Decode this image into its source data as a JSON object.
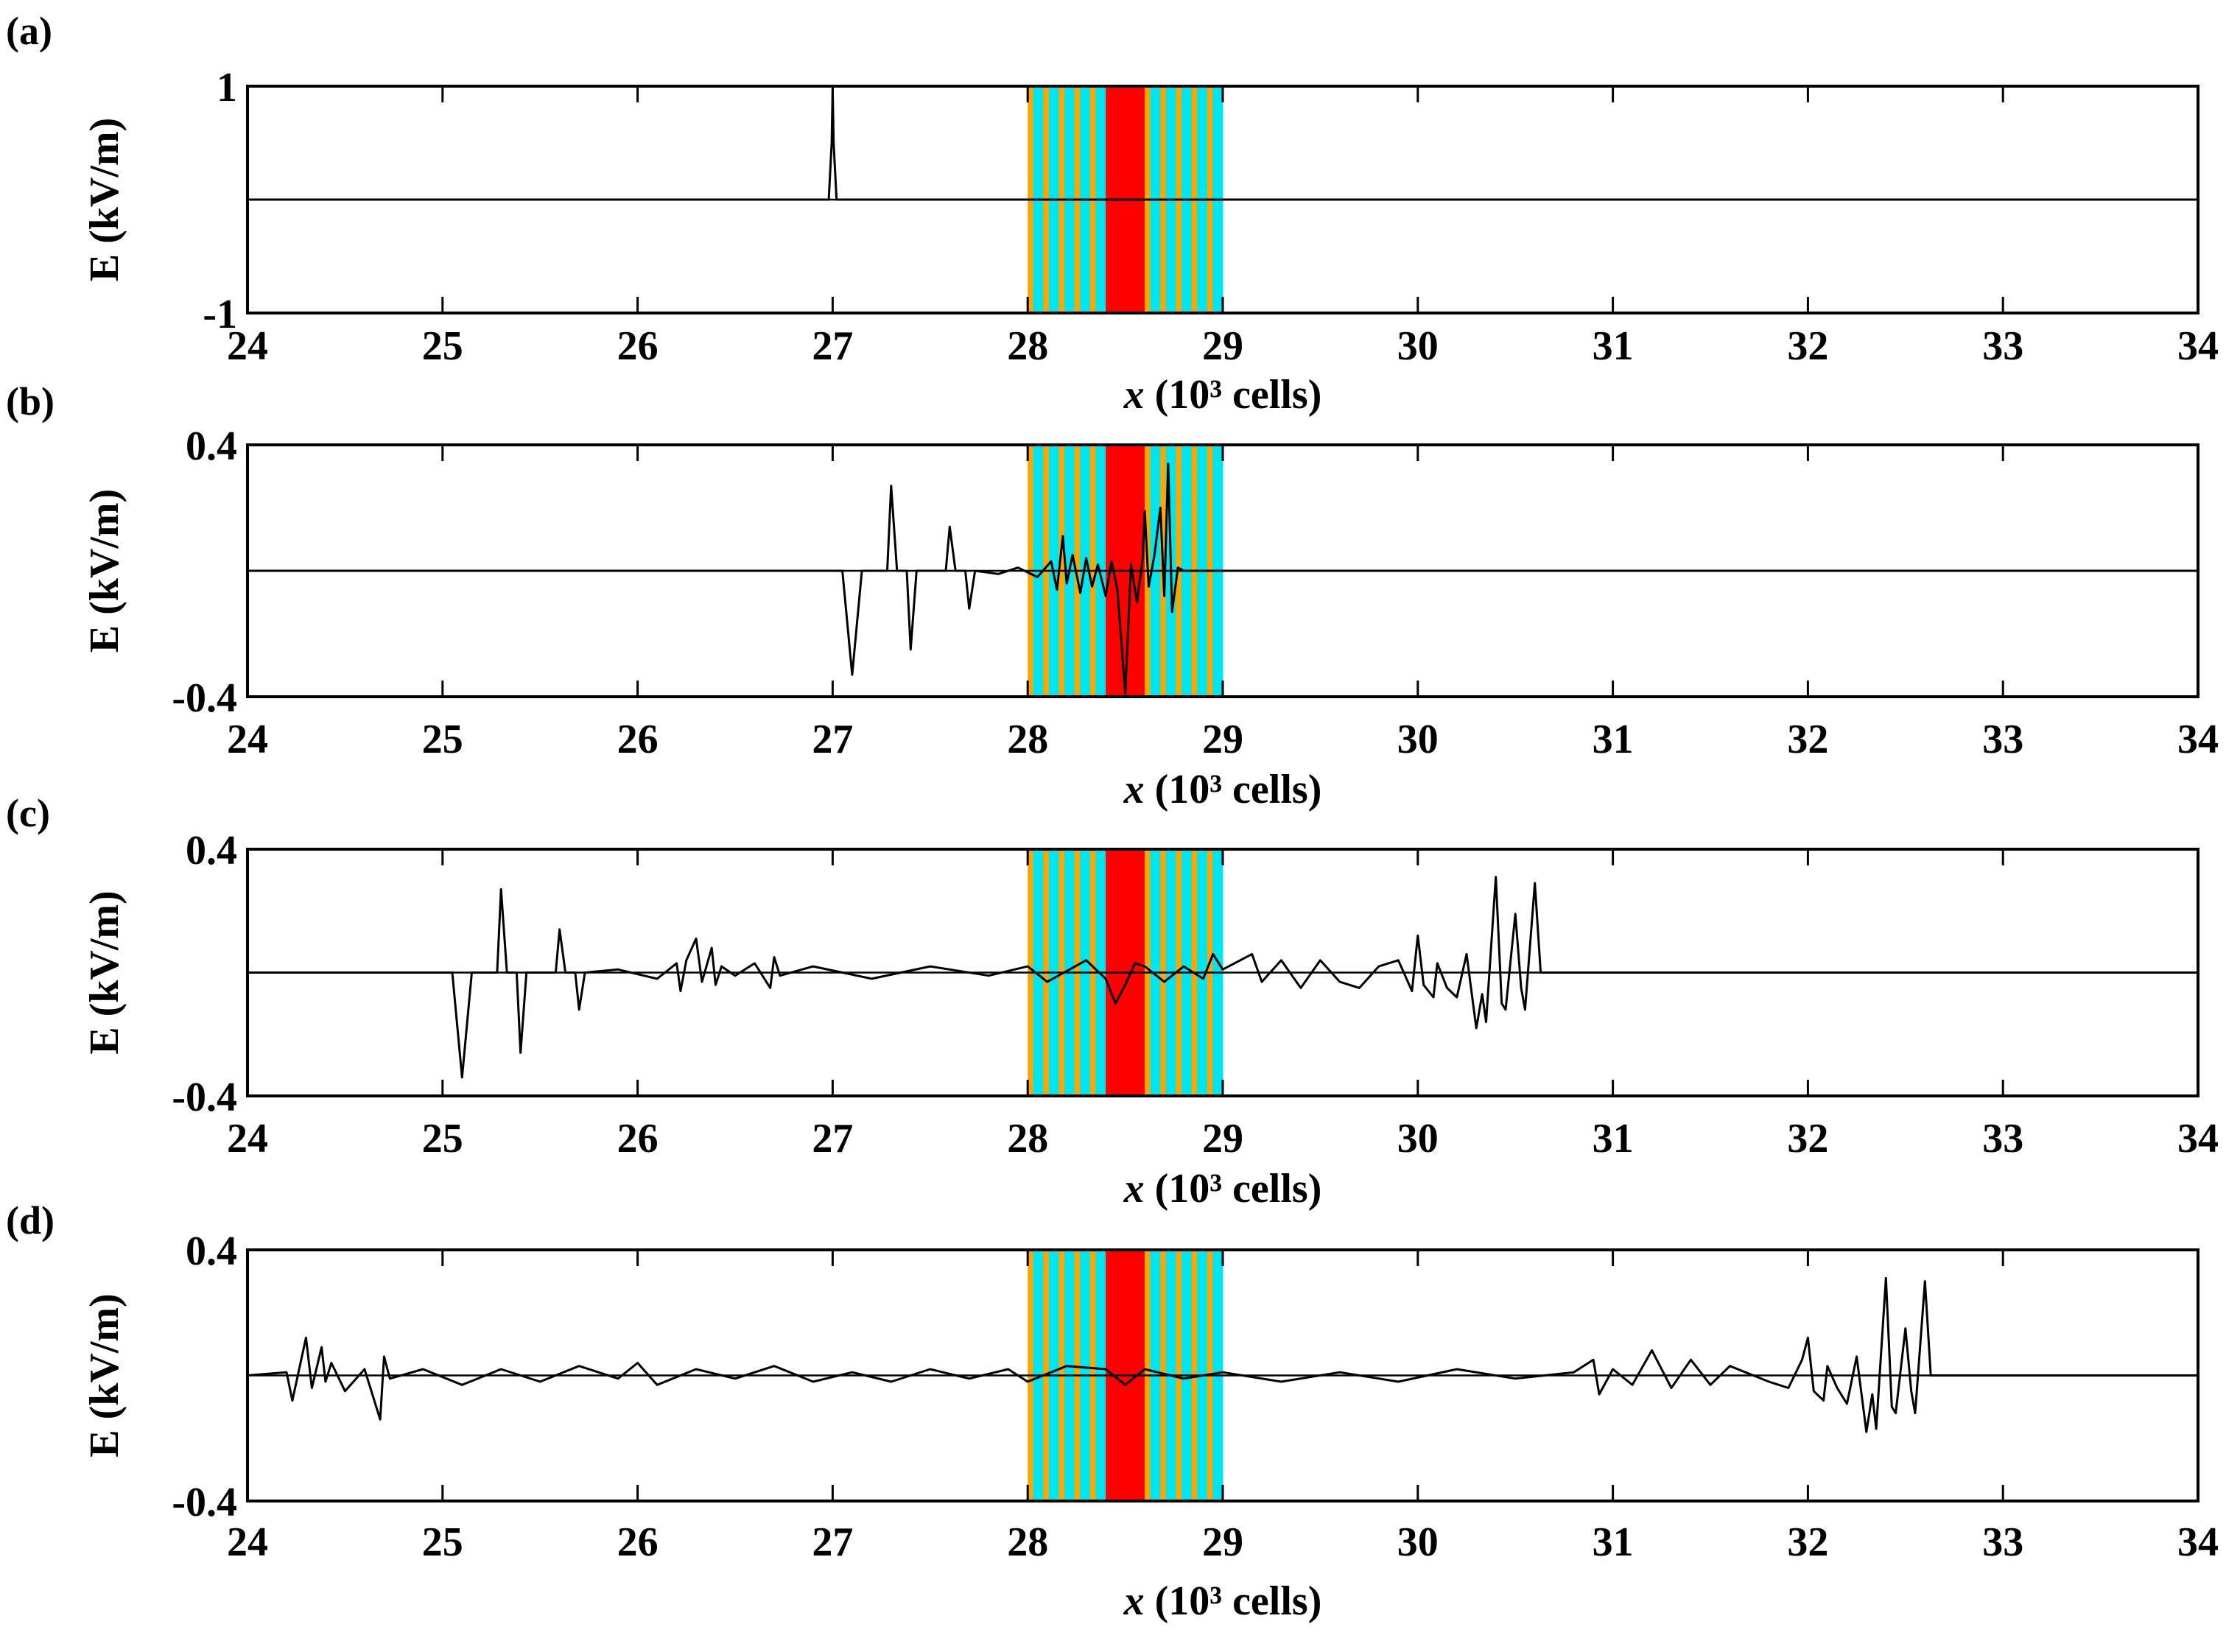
{
  "colors": {
    "layer_a": "#FFA500",
    "layer_b": "#00E5EE",
    "defect": "#FF0000",
    "trace": "#000000"
  },
  "chart_data": [
    {
      "type": "line",
      "panel": "(a)",
      "xlabel_italic": "x",
      "xlabel_rest": " (10³ cells)",
      "ylabel": "E (kV/m)",
      "xlim": [
        24,
        34
      ],
      "ylim": [
        -1,
        1
      ],
      "xticks": [
        "24",
        "25",
        "26",
        "27",
        "28",
        "29",
        "30",
        "31",
        "32",
        "33",
        "34"
      ],
      "yticks": [
        "1",
        "-1"
      ],
      "grid": false,
      "structure": {
        "x_start": 28.0,
        "x_end": 29.0,
        "defect": [
          28.4,
          28.6
        ]
      },
      "series": [
        {
          "x": [
            24.0,
            26.98,
            26.995,
            27.0,
            27.005,
            27.02,
            34.0
          ],
          "y": [
            0,
            0,
            0.5,
            0.98,
            0.5,
            0,
            0
          ]
        }
      ]
    },
    {
      "type": "line",
      "panel": "(b)",
      "xlabel_italic": "x",
      "xlabel_rest": " (10³ cells)",
      "ylabel": "E (kV/m)",
      "xlim": [
        24,
        34
      ],
      "ylim": [
        -0.4,
        0.4
      ],
      "xticks": [
        "24",
        "25",
        "26",
        "27",
        "28",
        "29",
        "30",
        "31",
        "32",
        "33",
        "34"
      ],
      "yticks": [
        "0.4",
        "-0.4"
      ],
      "grid": false,
      "structure": {
        "x_start": 28.0,
        "x_end": 29.0,
        "defect": [
          28.4,
          28.6
        ]
      },
      "series": [
        {
          "x": [
            24.0,
            27.05,
            27.1,
            27.15,
            27.28,
            27.3,
            27.33,
            27.38,
            27.4,
            27.43,
            27.58,
            27.6,
            27.63,
            27.68,
            27.7,
            27.73,
            27.85,
            27.95,
            28.05,
            28.12,
            28.15,
            28.18,
            28.2,
            28.23,
            28.27,
            28.3,
            28.33,
            28.36,
            28.4,
            28.43,
            28.46,
            28.5,
            28.53,
            28.56,
            28.59,
            28.6,
            28.62,
            28.65,
            28.68,
            28.7,
            28.72,
            28.74,
            28.77,
            28.8,
            34.0
          ],
          "y": [
            0,
            0,
            -0.33,
            0,
            0,
            0.27,
            0,
            0,
            -0.25,
            0,
            0,
            0.14,
            0,
            0,
            -0.12,
            0,
            -0.01,
            0.01,
            -0.02,
            0.03,
            -0.06,
            0.11,
            -0.04,
            0.05,
            -0.07,
            0.04,
            -0.05,
            0.02,
            -0.08,
            0.03,
            -0.06,
            -0.39,
            0.02,
            -0.1,
            0.04,
            0.19,
            -0.05,
            0.05,
            0.2,
            -0.08,
            0.34,
            -0.13,
            0.01,
            0,
            0
          ]
        }
      ]
    },
    {
      "type": "line",
      "panel": "(c)",
      "xlabel_italic": "x",
      "xlabel_rest": " (10³ cells)",
      "ylabel": "E (kV/m)",
      "xlim": [
        24,
        34
      ],
      "ylim": [
        -0.4,
        0.4
      ],
      "xticks": [
        "24",
        "25",
        "26",
        "27",
        "28",
        "29",
        "30",
        "31",
        "32",
        "33",
        "34"
      ],
      "yticks": [
        "0.4",
        "-0.4"
      ],
      "grid": false,
      "structure": {
        "x_start": 28.0,
        "x_end": 29.0,
        "defect": [
          28.4,
          28.6
        ]
      },
      "series": [
        {
          "x": [
            24.0,
            25.05,
            25.1,
            25.15,
            25.28,
            25.3,
            25.33,
            25.38,
            25.4,
            25.43,
            25.58,
            25.6,
            25.63,
            25.68,
            25.7,
            25.73,
            25.9,
            26.1,
            26.2,
            26.22,
            26.25,
            26.3,
            26.33,
            26.38,
            26.4,
            26.43,
            26.5,
            26.6,
            26.68,
            26.7,
            26.73,
            26.9,
            27.2,
            27.5,
            27.8,
            28.0,
            28.1,
            28.3,
            28.4,
            28.45,
            28.5,
            28.55,
            28.6,
            28.7,
            28.8,
            28.9,
            28.95,
            29.0,
            29.15,
            29.2,
            29.3,
            29.4,
            29.5,
            29.6,
            29.7,
            29.8,
            29.9,
            29.97,
            30.0,
            30.03,
            30.08,
            30.1,
            30.15,
            30.2,
            30.25,
            30.3,
            30.33,
            30.35,
            30.4,
            30.43,
            30.45,
            30.5,
            30.53,
            30.55,
            30.6,
            30.63,
            34.0
          ],
          "y": [
            0,
            0,
            -0.34,
            0,
            0,
            0.27,
            0,
            0,
            -0.26,
            0,
            0,
            0.14,
            0,
            0,
            -0.12,
            0,
            0.01,
            -0.02,
            0.03,
            -0.06,
            0.04,
            0.11,
            -0.03,
            0.08,
            -0.04,
            0.02,
            -0.01,
            0.03,
            -0.05,
            0.05,
            -0.01,
            0.02,
            -0.02,
            0.02,
            -0.01,
            0.02,
            -0.03,
            0.04,
            -0.02,
            -0.1,
            -0.04,
            0.03,
            0.02,
            -0.03,
            0.02,
            -0.02,
            0.06,
            0.01,
            0.06,
            -0.03,
            0.04,
            -0.05,
            0.04,
            -0.03,
            -0.05,
            0.02,
            0.04,
            -0.06,
            0.12,
            -0.04,
            -0.08,
            0.03,
            -0.05,
            -0.08,
            0.06,
            -0.18,
            -0.07,
            -0.16,
            0.31,
            -0.1,
            -0.12,
            0.19,
            -0.05,
            -0.12,
            0.29,
            0,
            0
          ]
        }
      ]
    },
    {
      "type": "line",
      "panel": "(d)",
      "xlabel_italic": "x",
      "xlabel_rest": " (10³ cells)",
      "ylabel": "E (kV/m)",
      "xlim": [
        24,
        34
      ],
      "ylim": [
        -0.4,
        0.4
      ],
      "xticks": [
        "24",
        "25",
        "26",
        "27",
        "28",
        "29",
        "30",
        "31",
        "32",
        "33",
        "34"
      ],
      "yticks": [
        "0.4",
        "-0.4"
      ],
      "grid": false,
      "structure": {
        "x_start": 28.0,
        "x_end": 29.0,
        "defect": [
          28.4,
          28.6
        ]
      },
      "series": [
        {
          "x": [
            24.0,
            24.2,
            24.23,
            24.3,
            24.33,
            24.38,
            24.4,
            24.43,
            24.5,
            24.6,
            24.68,
            24.7,
            24.73,
            24.9,
            25.1,
            25.3,
            25.5,
            25.7,
            25.9,
            26.0,
            26.1,
            26.3,
            26.5,
            26.7,
            26.9,
            27.1,
            27.3,
            27.5,
            27.7,
            27.9,
            28.0,
            28.2,
            28.4,
            28.5,
            28.6,
            28.8,
            29.0,
            29.3,
            29.6,
            29.9,
            30.2,
            30.5,
            30.8,
            30.9,
            30.93,
            31.0,
            31.1,
            31.2,
            31.3,
            31.4,
            31.5,
            31.6,
            31.8,
            31.9,
            31.97,
            32.0,
            32.03,
            32.08,
            32.1,
            32.15,
            32.2,
            32.25,
            32.3,
            32.33,
            32.35,
            32.4,
            32.43,
            32.45,
            32.5,
            32.53,
            32.55,
            32.6,
            32.63,
            34.0
          ],
          "y": [
            0,
            0.01,
            -0.08,
            0.12,
            -0.04,
            0.09,
            -0.02,
            0.04,
            -0.05,
            0.02,
            -0.14,
            0.06,
            -0.01,
            0.02,
            -0.03,
            0.02,
            -0.02,
            0.03,
            -0.01,
            0.04,
            -0.03,
            0.02,
            -0.01,
            0.03,
            -0.02,
            0.01,
            -0.02,
            0.02,
            -0.01,
            0.02,
            -0.02,
            0.03,
            0.02,
            -0.03,
            0.02,
            -0.01,
            0.01,
            -0.02,
            0.01,
            -0.02,
            0.02,
            -0.01,
            0.01,
            0.05,
            -0.06,
            0.02,
            -0.03,
            0.08,
            -0.04,
            0.05,
            -0.03,
            0.03,
            -0.02,
            -0.04,
            0.05,
            0.12,
            -0.05,
            -0.08,
            0.03,
            -0.04,
            -0.09,
            0.06,
            -0.18,
            -0.06,
            -0.17,
            0.31,
            -0.1,
            -0.12,
            0.15,
            -0.05,
            -0.12,
            0.3,
            0,
            0
          ]
        }
      ]
    }
  ]
}
